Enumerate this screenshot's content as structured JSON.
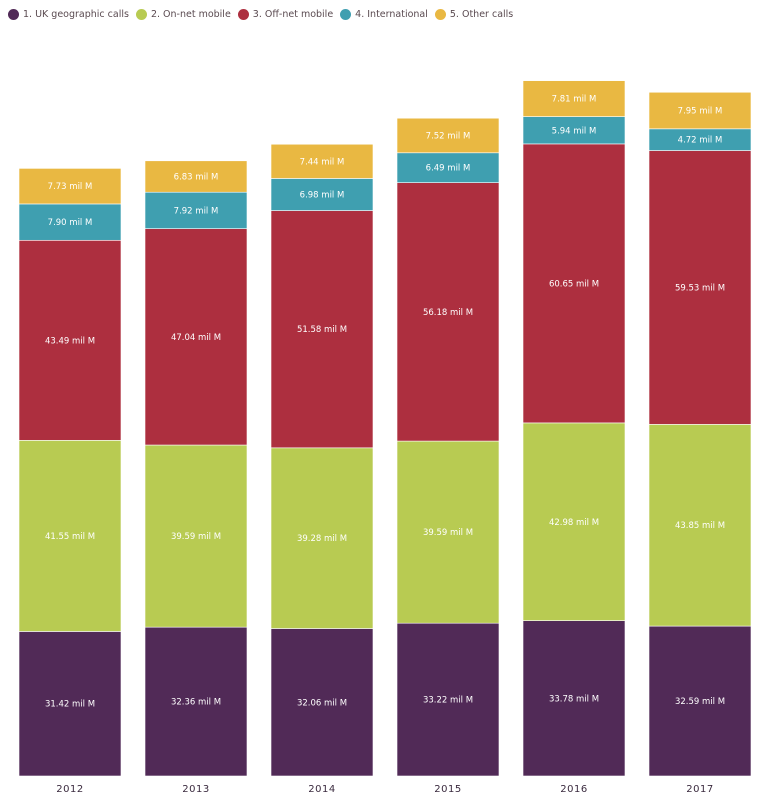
{
  "chart_data": {
    "type": "bar",
    "stacked": true,
    "title": "",
    "xlabel": "",
    "ylabel": "",
    "unit_suffix": "mil M",
    "categories": [
      "2012",
      "2013",
      "2014",
      "2015",
      "2016",
      "2017"
    ],
    "legend_position": "top-left",
    "grid": false,
    "series": [
      {
        "name": "1. UK geographic calls",
        "color": "#512a57",
        "values": [
          31.42,
          32.36,
          32.06,
          33.22,
          33.78,
          32.59
        ],
        "labels": [
          "31.42 mil M",
          "32.36 mil M",
          "32.06 mil M",
          "33.22 mil M",
          "33.78 mil M",
          "32.59 mil M"
        ]
      },
      {
        "name": "2. On-net mobile",
        "color": "#b8cb52",
        "values": [
          41.55,
          39.59,
          39.28,
          39.59,
          42.98,
          43.85
        ],
        "labels": [
          "41.55 mil M",
          "39.59 mil M",
          "39.28 mil M",
          "39.59 mil M",
          "42.98 mil M",
          "43.85 mil M"
        ]
      },
      {
        "name": "3. Off-net mobile",
        "color": "#ad2f3f",
        "values": [
          43.49,
          47.04,
          51.58,
          56.18,
          60.65,
          59.53
        ],
        "labels": [
          "43.49 mil M",
          "47.04 mil M",
          "51.58 mil M",
          "56.18 mil M",
          "60.65 mil M",
          "59.53 mil M"
        ]
      },
      {
        "name": "4. International",
        "color": "#3f9fb0",
        "values": [
          7.9,
          7.92,
          6.98,
          6.49,
          5.94,
          4.72
        ],
        "labels": [
          "7.90 mil M",
          "7.92 mil M",
          "6.98 mil M",
          "6.49 mil M",
          "5.94 mil M",
          "4.72 mil M"
        ]
      },
      {
        "name": "5. Other calls",
        "color": "#e9b842",
        "values": [
          7.73,
          6.83,
          7.44,
          7.52,
          7.81,
          7.95
        ],
        "labels": [
          "7.73 mil M",
          "6.83 mil M",
          "7.44 mil M",
          "7.52 mil M",
          "7.81 mil M",
          "7.95 mil M"
        ]
      }
    ]
  }
}
